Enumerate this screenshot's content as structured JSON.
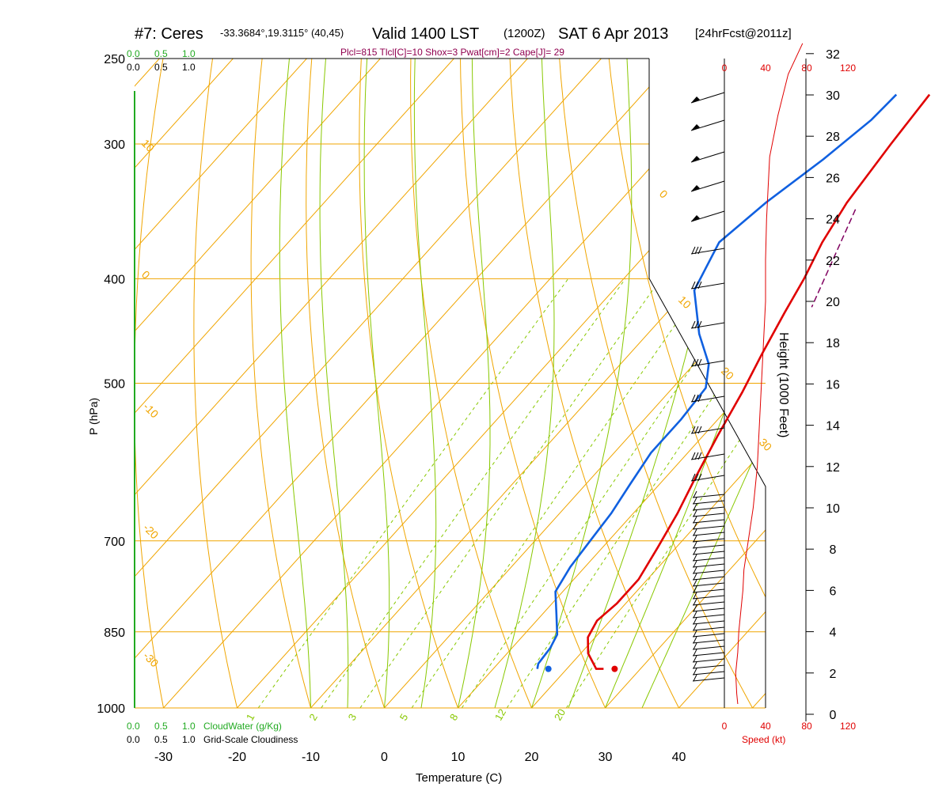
{
  "header": {
    "station": "#7: Ceres",
    "coords": "-33.3684°,19.3115° (40,45)",
    "valid": "Valid 1400 LST",
    "utc": "(1200Z)",
    "date": "SAT 6 Apr 2013",
    "forecast": "[24hrFcst@2011z]"
  },
  "indices_line": "Plcl=815 Tlcl[C]=10 Shox=3 Pwat[cm]=2 Cape[J]= 29",
  "top_cloud_scale": {
    "water": [
      "0.0",
      "0.5",
      "1.0"
    ],
    "grid": [
      "0.0",
      "0.5",
      "1.0"
    ]
  },
  "bottom_legend": {
    "water_ticks": [
      "0.0",
      "0.5",
      "1.0"
    ],
    "water_label": "CloudWater (g/Kg)",
    "grid_ticks": [
      "0.0",
      "0.5",
      "1.0"
    ],
    "grid_label": "Grid-Scale Cloudiness"
  },
  "colors": {
    "isotherm": "#f0a500",
    "dry_adiabat": "#f0a500",
    "moist_adiabat": "#88c800",
    "mixing_ratio": "#88c800",
    "temperature": "#e00000",
    "dewpoint": "#1060e0",
    "parcel": "#800060",
    "speed": "#e00000",
    "cloudwater": "#22aa22"
  },
  "chart_data": {
    "type": "line",
    "xlabel": "Temperature (C)",
    "ylabel": "P (hPa)",
    "y2label": "Height (1000 Feet)",
    "xlim": [
      -34,
      47
    ],
    "plim": [
      1000,
      250
    ],
    "x_ticks": [
      "-30",
      "-20",
      "-10",
      "0",
      "10",
      "20",
      "30",
      "40"
    ],
    "p_ticks": [
      "250",
      "300",
      "400",
      "500",
      "700",
      "850",
      "1000"
    ],
    "height_ticks": [
      "0",
      "2",
      "4",
      "6",
      "8",
      "10",
      "12",
      "14",
      "16",
      "18",
      "20",
      "22",
      "24",
      "26",
      "28",
      "30",
      "32"
    ],
    "speed_axis_label": "Speed (kt)",
    "speed_ticks": [
      "0",
      "40",
      "80",
      "120"
    ],
    "isotherm_labels": [
      "10",
      "0",
      "-10",
      "-20",
      "-30",
      "0",
      "10",
      "20",
      "30"
    ],
    "mixing_ratio_labels": [
      "1",
      "2",
      "3",
      "5",
      "8",
      "12",
      "20"
    ],
    "series": [
      {
        "points": [
          [
            -1,
            270
          ],
          [
            -0.2,
            300
          ],
          [
            1,
            340
          ],
          [
            2.5,
            370
          ],
          [
            4.5,
            400
          ],
          [
            6,
            430
          ],
          [
            8,
            470
          ],
          [
            10,
            510
          ],
          [
            12,
            560
          ],
          [
            14,
            610
          ],
          [
            16,
            660
          ],
          [
            17.5,
            710
          ],
          [
            18.8,
            760
          ],
          [
            18.8,
            800
          ],
          [
            18.2,
            830
          ],
          [
            19,
            860
          ],
          [
            21,
            890
          ],
          [
            24,
            920
          ],
          [
            25,
            920
          ]
        ]
      },
      {
        "points": [
          [
            -5.5,
            270
          ],
          [
            -5.8,
            285
          ],
          [
            -7.5,
            310
          ],
          [
            -10,
            340
          ],
          [
            -11.5,
            370
          ],
          [
            -9,
            410
          ],
          [
            -3,
            450
          ],
          [
            2,
            480
          ],
          [
            4.5,
            505
          ],
          [
            5,
            540
          ],
          [
            5,
            580
          ],
          [
            6,
            620
          ],
          [
            7,
            660
          ],
          [
            7.5,
            700
          ],
          [
            8,
            740
          ],
          [
            9,
            780
          ],
          [
            12,
            820
          ],
          [
            14.5,
            855
          ],
          [
            15.2,
            880
          ],
          [
            15.5,
            910
          ],
          [
            16,
            920
          ]
        ]
      },
      {
        "points": [
          [
            3,
            345
          ],
          [
            9,
            425
          ]
        ]
      }
    ],
    "surface_temperature": {
      "t": 26.5,
      "p": 920
    },
    "surface_dewpoint": {
      "t": 17.5,
      "p": 920
    },
    "wind_speed_profile": [
      [
        13,
        0.5
      ],
      [
        12,
        1
      ],
      [
        11,
        2
      ],
      [
        13,
        3
      ],
      [
        14,
        4
      ],
      [
        16,
        5
      ],
      [
        18,
        6
      ],
      [
        19,
        7
      ],
      [
        22,
        8
      ],
      [
        25,
        9
      ],
      [
        28,
        10
      ],
      [
        30,
        11
      ],
      [
        32,
        12
      ],
      [
        33,
        13
      ],
      [
        34,
        14
      ],
      [
        35,
        15
      ],
      [
        36,
        16
      ],
      [
        37,
        17
      ],
      [
        38,
        18
      ],
      [
        39,
        19
      ],
      [
        40,
        20
      ],
      [
        40,
        22
      ],
      [
        41,
        24
      ],
      [
        44,
        27
      ],
      [
        52,
        29
      ],
      [
        62,
        31
      ],
      [
        76,
        32.5
      ]
    ]
  }
}
